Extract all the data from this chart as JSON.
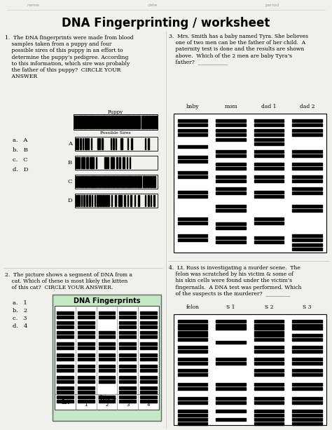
{
  "title": "DNA Fingerprinting / worksheet",
  "bg_color": "#f0f0ec",
  "q1_text": "1.  The DNA fingerprints were made from blood\n    samples taken from a puppy and four\n    possible sires of this puppy in an effort to\n    determine the puppy’s pedigree. According\n    to this information, which sire was probably\n    the father of this puppy?  CIRCLE YOUR\n    ANSWER",
  "q1_choices": [
    "a.   A",
    "b.   B",
    "c.   C",
    "d.   D"
  ],
  "q2_text": "2.  The picture shows a segment of DNA from a\n    cat. Which of these is most likely the kitten\n    of this cat?  CIRCLE YOUR ANSWER.",
  "q2_choices": [
    "a.   1",
    "b.   2",
    "c.   3",
    "d.   4"
  ],
  "q3_text": "3.  Mrs. Smith has a baby named Tyra. She believes\n    one of two men can be the father of her child.  A\n    paternity test is done and the results are shown\n    above.  Which of the 2 men are baby Tyra’s\n    father?  ___________",
  "q3_col_labels": [
    "baby",
    "mom",
    "dad 1",
    "dad 2"
  ],
  "q4_text": "4.  Lt. Russ is investigating a murder scene.  The\n    felon was scratched by his victim & some of\n    his skin cells were found under the victim’s\n    fingernails.  A DNA test was performed. Which\n    of the suspects is the murderer?  _________",
  "q4_col_labels": [
    "felon",
    "S 1",
    "S 2",
    "S 3"
  ],
  "header_labels": [
    "name",
    "date",
    "period"
  ]
}
